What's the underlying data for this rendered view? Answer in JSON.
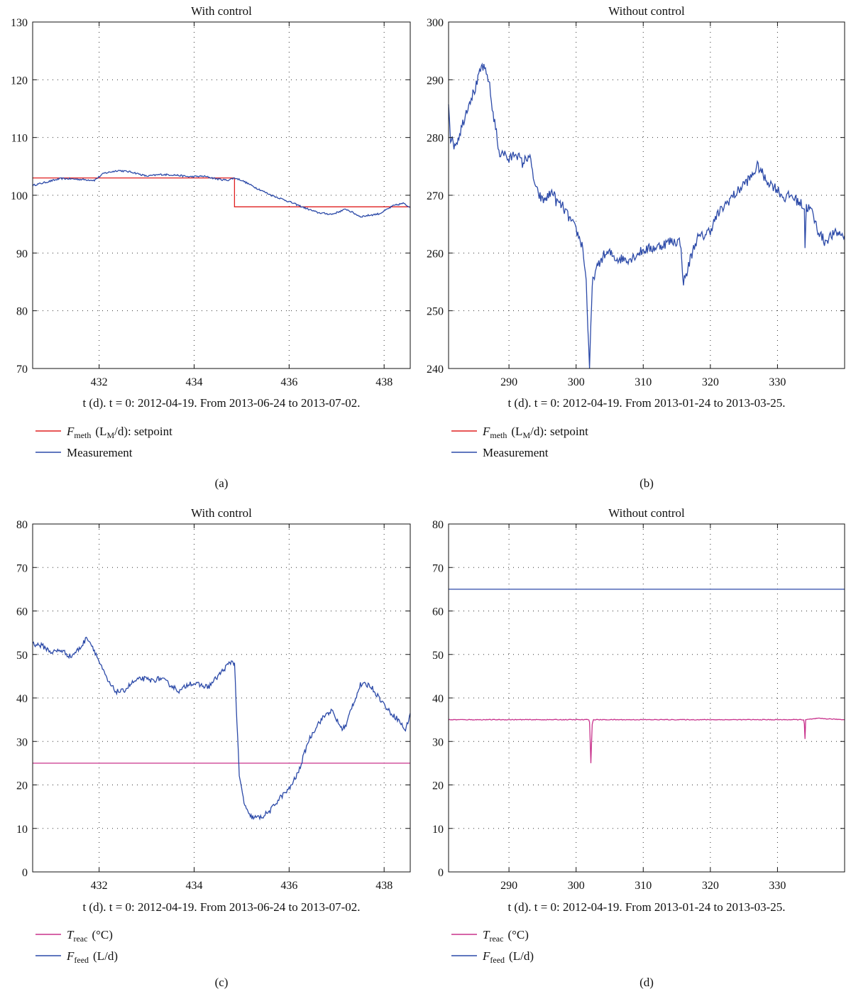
{
  "panels": [
    {
      "label": "(a)",
      "title": "With control",
      "xcaption": "t (d). t = 0: 2012-04-19. From 2013-06-24 to 2013-07-02.",
      "legend": [
        {
          "sym": "F",
          "sub": "meth",
          "rest": "(L",
          "rsub": "M",
          "tail": "/d): setpoint",
          "color": "#e02020"
        },
        {
          "sym": "",
          "sub": "",
          "rest": "Measurement",
          "rsub": "",
          "tail": "",
          "color": "#2c4aa8"
        }
      ]
    },
    {
      "label": "(b)",
      "title": "Without control",
      "xcaption": "t (d). t = 0: 2012-04-19. From 2013-01-24 to 2013-03-25.",
      "legend": [
        {
          "sym": "F",
          "sub": "meth",
          "rest": "(L",
          "rsub": "M",
          "tail": "/d): setpoint",
          "color": "#e02020"
        },
        {
          "sym": "",
          "sub": "",
          "rest": "Measurement",
          "rsub": "",
          "tail": "",
          "color": "#2c4aa8"
        }
      ]
    },
    {
      "label": "(c)",
      "title": "With control",
      "xcaption": "t (d). t = 0: 2012-04-19. From 2013-06-24 to 2013-07-02.",
      "legend": [
        {
          "sym": "T",
          "sub": "reac",
          "rest": "(°C)",
          "rsub": "",
          "tail": "",
          "color": "#c8328c"
        },
        {
          "sym": "F",
          "sub": "feed",
          "rest": "(L/d)",
          "rsub": "",
          "tail": "",
          "color": "#2c4aa8"
        }
      ]
    },
    {
      "label": "(d)",
      "title": "Without control",
      "xcaption": "t (d). t = 0: 2012-04-19. From 2013-01-24 to 2013-03-25.",
      "legend": [
        {
          "sym": "T",
          "sub": "reac",
          "rest": "(°C)",
          "rsub": "",
          "tail": "",
          "color": "#c8328c"
        },
        {
          "sym": "F",
          "sub": "feed",
          "rest": "(L/d)",
          "rsub": "",
          "tail": "",
          "color": "#2c4aa8"
        }
      ]
    }
  ],
  "chart_data": [
    {
      "type": "line",
      "title": "With control",
      "xlim": [
        430.6,
        438.55
      ],
      "ylim": [
        70,
        130
      ],
      "xticks": [
        432,
        434,
        436,
        438
      ],
      "yticks": [
        70,
        80,
        90,
        100,
        110,
        120,
        130
      ],
      "grid": true,
      "series": [
        {
          "name": "F_meth (L_M/d): setpoint",
          "color": "#e02020",
          "step": true,
          "x": [
            430.6,
            434.85,
            434.85,
            438.55
          ],
          "y": [
            103.0,
            103.0,
            98.0,
            98.0
          ]
        },
        {
          "name": "Measurement",
          "color": "#2c4aa8",
          "noise": 0.15,
          "x": [
            430.6,
            430.9,
            431.2,
            431.5,
            431.9,
            432.1,
            432.4,
            432.7,
            433.0,
            433.3,
            433.6,
            433.9,
            434.2,
            434.5,
            434.7,
            434.85,
            435.0,
            435.3,
            435.6,
            436.0,
            436.3,
            436.6,
            436.9,
            437.2,
            437.5,
            437.9,
            438.2,
            438.4,
            438.55
          ],
          "y": [
            101.7,
            102.3,
            102.9,
            102.8,
            102.6,
            103.8,
            104.3,
            104.0,
            103.3,
            103.6,
            103.5,
            103.2,
            103.3,
            102.8,
            102.6,
            103.0,
            102.6,
            101.3,
            100.1,
            98.9,
            97.9,
            97.0,
            96.7,
            97.6,
            96.3,
            96.8,
            98.2,
            98.6,
            97.9
          ]
        }
      ]
    },
    {
      "type": "line",
      "title": "Without control",
      "xlim": [
        281,
        340
      ],
      "ylim": [
        240,
        300
      ],
      "xticks": [
        290,
        300,
        310,
        320,
        330
      ],
      "yticks": [
        240,
        250,
        260,
        270,
        280,
        290,
        300
      ],
      "grid": true,
      "series": [
        {
          "name": "F_meth (L_M/d): setpoint",
          "color": "#e02020",
          "x": [],
          "y": []
        },
        {
          "name": "Measurement",
          "color": "#2c4aa8",
          "noise": 0.9,
          "x": [
            281.0,
            281.3,
            281.8,
            282.3,
            283.0,
            284.0,
            285.0,
            286.0,
            287.0,
            287.5,
            288.0,
            288.5,
            289.0,
            290.0,
            291.0,
            292.0,
            293.0,
            294.0,
            295.0,
            296.0,
            296.5,
            297.0,
            298.0,
            299.0,
            300.0,
            301.0,
            301.5,
            302.0,
            302.2,
            302.4,
            302.6,
            303.0,
            304.0,
            305.0,
            306.0,
            308.0,
            310.0,
            312.0,
            314.0,
            315.5,
            316.0,
            316.5,
            317.0,
            318.0,
            319.0,
            320.0,
            321.0,
            322.0,
            323.0,
            324.0,
            325.0,
            326.0,
            327.0,
            327.5,
            328.0,
            329.0,
            330.0,
            331.0,
            332.0,
            333.0,
            334.0,
            334.1,
            334.3,
            335.0,
            336.0,
            337.0,
            338.0,
            339.0,
            340.0
          ],
          "y": [
            286.5,
            280.0,
            278.7,
            279.5,
            282.0,
            286.0,
            288.5,
            292.5,
            290.0,
            285.0,
            282.0,
            277.0,
            277.8,
            276.0,
            277.5,
            275.5,
            277.0,
            271.0,
            269.0,
            270.0,
            270.8,
            269.0,
            268.0,
            266.0,
            264.0,
            261.0,
            255.0,
            240.0,
            247.0,
            254.0,
            256.0,
            257.0,
            259.5,
            260.0,
            259.0,
            259.0,
            260.5,
            261.0,
            262.0,
            262.0,
            255.0,
            256.5,
            259.0,
            262.5,
            263.0,
            264.0,
            266.5,
            268.0,
            269.5,
            270.5,
            272.0,
            273.0,
            275.0,
            274.5,
            273.0,
            272.0,
            271.0,
            269.5,
            270.0,
            269.0,
            268.0,
            261.0,
            268.0,
            267.5,
            264.0,
            262.0,
            263.0,
            263.5,
            263.0
          ]
        }
      ]
    },
    {
      "type": "line",
      "title": "With control",
      "xlim": [
        430.6,
        438.55
      ],
      "ylim": [
        0,
        80
      ],
      "xticks": [
        432,
        434,
        436,
        438
      ],
      "yticks": [
        0,
        10,
        20,
        30,
        40,
        50,
        60,
        70,
        80
      ],
      "grid": true,
      "series": [
        {
          "name": "T_reac (°C)",
          "color": "#c8328c",
          "x": [
            430.6,
            438.55
          ],
          "y": [
            25.0,
            25.0
          ]
        },
        {
          "name": "F_feed (L/d)",
          "color": "#2c4aa8",
          "noise": 0.6,
          "x": [
            430.6,
            430.8,
            431.0,
            431.2,
            431.4,
            431.6,
            431.75,
            431.9,
            432.05,
            432.2,
            432.35,
            432.5,
            432.7,
            432.9,
            433.1,
            433.3,
            433.5,
            433.7,
            433.9,
            434.1,
            434.3,
            434.5,
            434.7,
            434.8,
            434.85,
            434.95,
            435.05,
            435.15,
            435.25,
            435.4,
            435.6,
            435.8,
            436.0,
            436.2,
            436.4,
            436.6,
            436.8,
            436.9,
            437.0,
            437.1,
            437.2,
            437.3,
            437.4,
            437.5,
            437.7,
            437.9,
            438.1,
            438.3,
            438.45,
            438.55
          ],
          "y": [
            52.5,
            52.0,
            50.5,
            51.0,
            49.5,
            51.5,
            54.0,
            51.0,
            47.0,
            43.5,
            41.5,
            41.5,
            43.5,
            44.5,
            44.0,
            44.5,
            43.0,
            41.5,
            43.5,
            43.0,
            42.5,
            45.0,
            47.5,
            48.5,
            48.0,
            22.0,
            16.0,
            13.0,
            12.5,
            12.5,
            14.0,
            17.0,
            19.0,
            23.0,
            30.0,
            34.0,
            36.5,
            37.0,
            35.0,
            33.0,
            33.5,
            37.5,
            40.0,
            43.0,
            43.0,
            40.0,
            37.0,
            35.0,
            32.5,
            36.5
          ]
        }
      ]
    },
    {
      "type": "line",
      "title": "Without control",
      "xlim": [
        281,
        340
      ],
      "ylim": [
        0,
        80
      ],
      "xticks": [
        290,
        300,
        310,
        320,
        330
      ],
      "yticks": [
        0,
        10,
        20,
        30,
        40,
        50,
        60,
        70,
        80
      ],
      "grid": true,
      "series": [
        {
          "name": "T_reac (°C)",
          "color": "#c8328c",
          "noise": 0.08,
          "x": [
            281.0,
            301.9,
            302.0,
            302.2,
            302.4,
            302.6,
            333.9,
            334.0,
            334.1,
            334.2,
            336.0,
            340.0
          ],
          "y": [
            35.0,
            35.0,
            34.5,
            25.0,
            34.0,
            35.0,
            35.0,
            34.0,
            30.5,
            35.0,
            35.3,
            35.0
          ]
        },
        {
          "name": "F_feed (L/d)",
          "color": "#2c4aa8",
          "x": [
            281.0,
            340.0
          ],
          "y": [
            65.0,
            65.0
          ]
        }
      ]
    }
  ]
}
